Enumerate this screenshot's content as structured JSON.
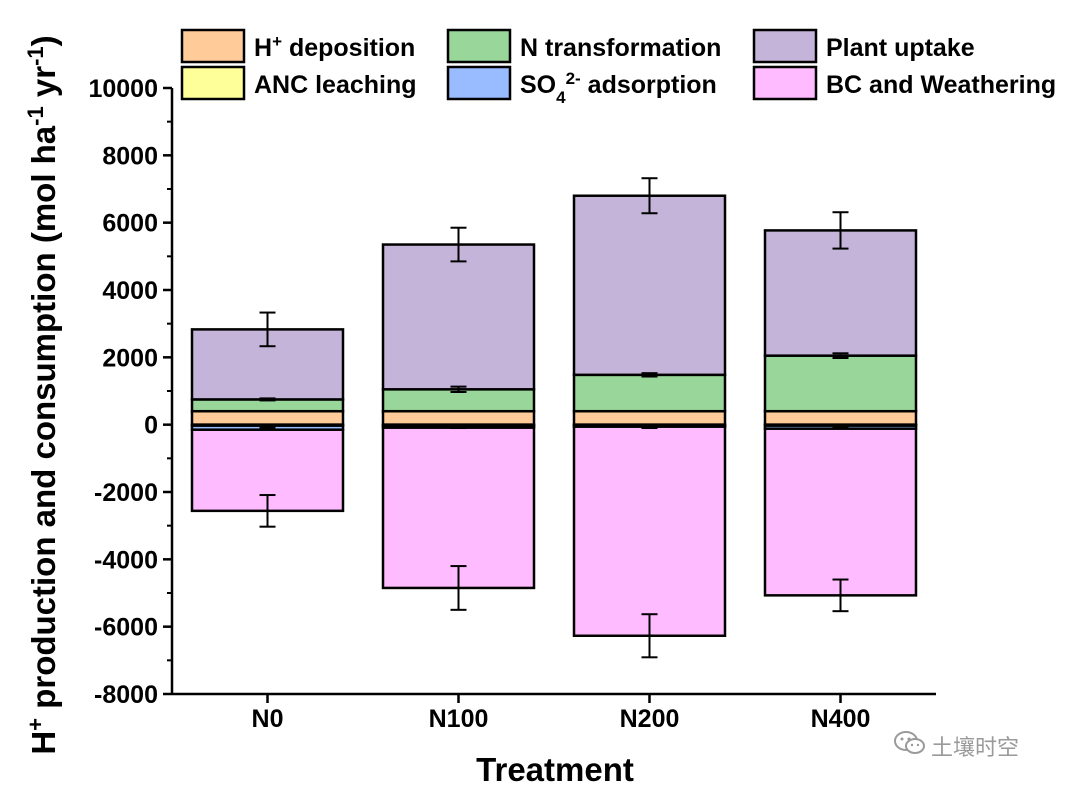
{
  "chart_data": {
    "type": "bar",
    "stacked": true,
    "categories": [
      "N0",
      "N100",
      "N200",
      "N400"
    ],
    "xlabel": "Treatment",
    "ylabel": {
      "prefix": "H",
      "prefix_sup": "+",
      "main": " production and consumption (mol ha",
      "sup1": "-1",
      "mid": " yr",
      "sup2": "-1",
      "end": ")"
    },
    "ylim": [
      -8000,
      10000
    ],
    "yticks": [
      -8000,
      -6000,
      -4000,
      -2000,
      0,
      2000,
      4000,
      6000,
      8000,
      10000
    ],
    "yticks_labels": [
      "-8000",
      "-6000",
      "-4000",
      "-2000",
      "0",
      "2000",
      "4000",
      "6000",
      "8000",
      "10000"
    ],
    "legend_position": "top",
    "series": [
      {
        "key": "h_deposition",
        "name_parts": [
          {
            "t": "H"
          },
          {
            "t": "+",
            "sup": true
          },
          {
            "t": " deposition"
          }
        ],
        "color": "#FFCC99",
        "values": [
          400,
          400,
          400,
          400
        ],
        "stack": "positive"
      },
      {
        "key": "n_transformation",
        "name_parts": [
          {
            "t": "N transformation"
          }
        ],
        "color": "#99D699",
        "values": [
          350,
          650,
          1080,
          1650
        ],
        "stack": "positive"
      },
      {
        "key": "plant_uptake",
        "name_parts": [
          {
            "t": "Plant uptake"
          }
        ],
        "color": "#C5B4D9",
        "values": [
          2080,
          4300,
          5320,
          3720
        ],
        "stack": "positive"
      },
      {
        "key": "anc_leaching",
        "name_parts": [
          {
            "t": "ANC leaching"
          }
        ],
        "color": "#FFFF99",
        "values": [
          -30,
          -30,
          -20,
          -30
        ],
        "stack": "negative"
      },
      {
        "key": "so4_adsorption",
        "name_parts": [
          {
            "t": "SO"
          },
          {
            "t": "4",
            "sub": true
          },
          {
            "t": "2-",
            "sup": true
          },
          {
            "t": " adsorption"
          }
        ],
        "color": "#99BBFF",
        "values": [
          -120,
          -60,
          -40,
          -90
        ],
        "stack": "negative"
      },
      {
        "key": "bc_weathering",
        "name_parts": [
          {
            "t": "BC and Weathering"
          }
        ],
        "color": "#FFBBFF",
        "values": [
          -2410,
          -4760,
          -6210,
          -4950
        ],
        "stack": "negative"
      }
    ],
    "totals_positive": [
      2830,
      5350,
      6800,
      5770
    ],
    "totals_negative": [
      -2560,
      -4850,
      -6270,
      -5070
    ],
    "error_bars": {
      "positive_top": [
        500,
        500,
        520,
        540
      ],
      "positive_mid": [
        30,
        80,
        50,
        70
      ],
      "negative_mid": [
        20,
        20,
        20,
        20
      ],
      "negative_bottom": [
        470,
        650,
        640,
        470
      ]
    },
    "mid_bar_tops": [
      750,
      1050,
      1480,
      2050
    ]
  },
  "watermark": {
    "icon": "wechat-icon",
    "text": "土壤时空"
  }
}
